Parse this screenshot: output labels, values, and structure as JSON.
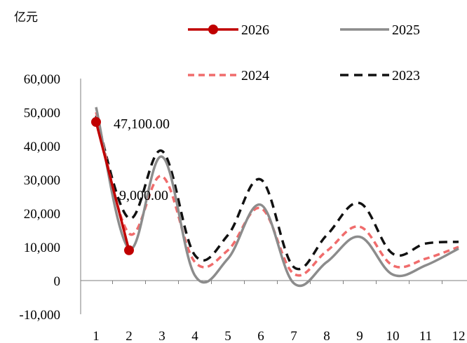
{
  "chart_data": {
    "type": "line",
    "unit_label": "亿元",
    "categories": [
      "1",
      "2",
      "3",
      "4",
      "5",
      "6",
      "7",
      "8",
      "9",
      "10",
      "11",
      "12"
    ],
    "y_ticks": [
      "60,000",
      "50,000",
      "40,000",
      "30,000",
      "20,000",
      "10,000",
      "0",
      "-10,000"
    ],
    "y_tick_values": [
      60000,
      50000,
      40000,
      30000,
      20000,
      10000,
      0,
      -10000
    ],
    "ylim": [
      -10000,
      60000
    ],
    "series": [
      {
        "name": "2026",
        "color": "#c00000",
        "style": "solid-marker",
        "values": [
          47100,
          9000,
          null,
          null,
          null,
          null,
          null,
          null,
          null,
          null,
          null,
          null
        ]
      },
      {
        "name": "2025",
        "color": "#8c8c8c",
        "style": "solid",
        "values": [
          51500,
          9500,
          36800,
          1500,
          6500,
          22500,
          -800,
          5500,
          13000,
          1800,
          4500,
          9500
        ]
      },
      {
        "name": "2024",
        "color": "#f06c6c",
        "style": "dashed",
        "values": [
          50000,
          14000,
          31000,
          5500,
          9000,
          21500,
          2000,
          8800,
          16000,
          4500,
          6500,
          10000
        ]
      },
      {
        "name": "2023",
        "color": "#111111",
        "style": "dashed",
        "values": [
          49000,
          18500,
          38500,
          7500,
          13500,
          30000,
          4000,
          13500,
          23000,
          8000,
          11000,
          11500
        ]
      }
    ],
    "data_labels": [
      {
        "series": "2026",
        "x": "1",
        "text": "47,100.00"
      },
      {
        "series": "2026",
        "x": "2",
        "text": "9,000.00"
      }
    ],
    "legend": [
      "2026",
      "2025",
      "2024",
      "2023"
    ],
    "legend_position": "top"
  }
}
